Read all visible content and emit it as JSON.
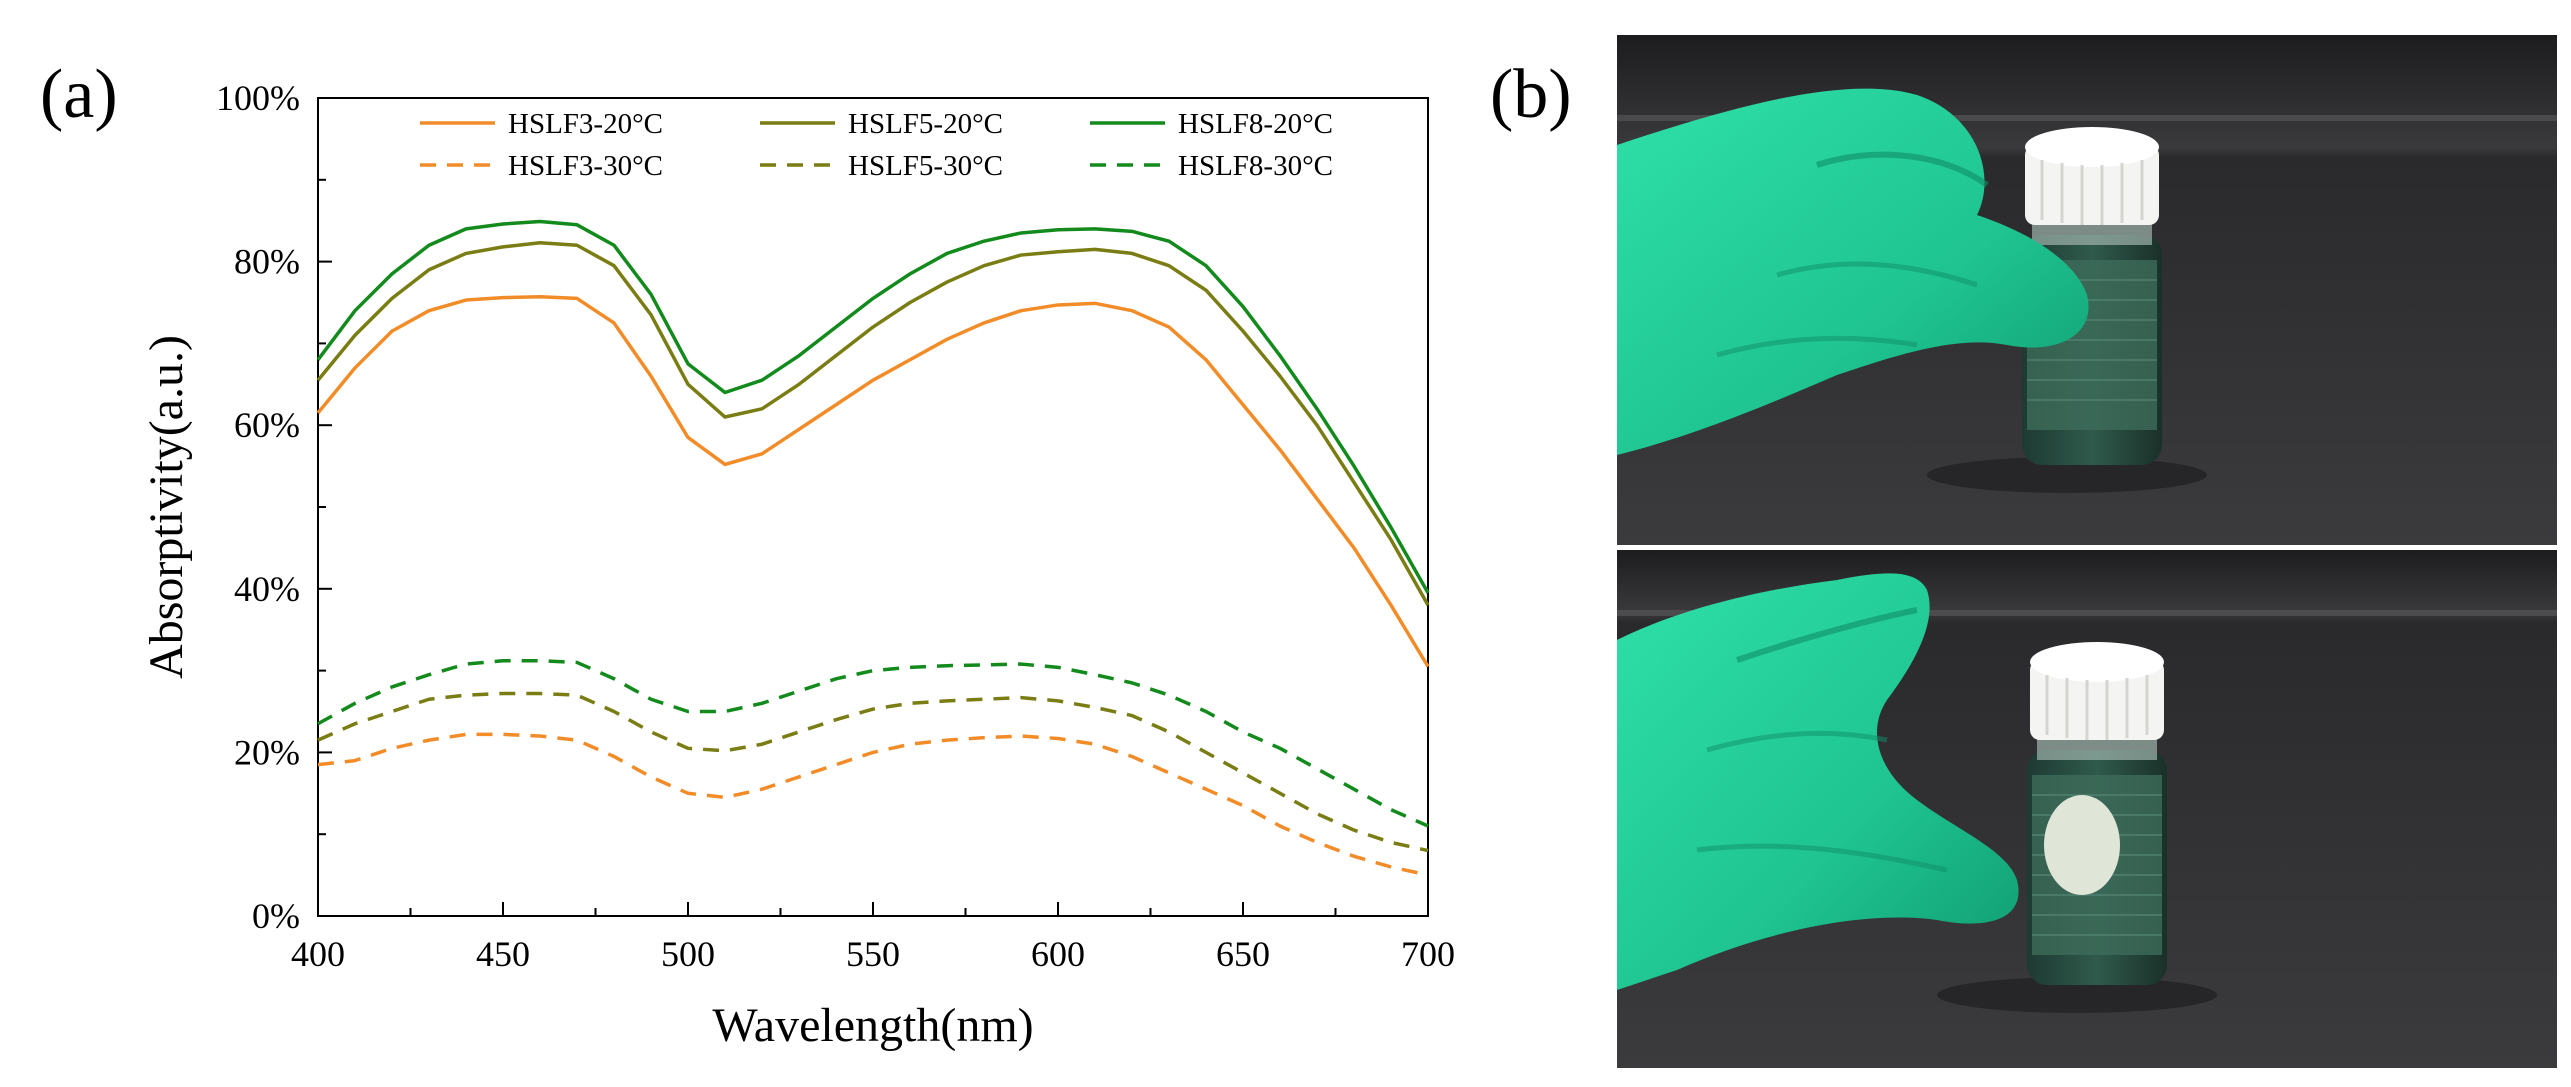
{
  "panels": {
    "a": "(a)",
    "b": "(b)"
  },
  "chart_data": {
    "type": "line",
    "title": "",
    "xlabel": "Wavelength(nm)",
    "ylabel": "Absorptivity(a.u.)",
    "xlim": [
      400,
      700
    ],
    "ylim": [
      0,
      100
    ],
    "xticks": [
      400,
      450,
      500,
      550,
      600,
      650,
      700
    ],
    "yticks": [
      0,
      20,
      40,
      60,
      80,
      100
    ],
    "ytick_labels": [
      "0%",
      "20%",
      "40%",
      "60%",
      "80%",
      "100%"
    ],
    "grid": false,
    "legend_position": "top",
    "x": [
      400,
      410,
      420,
      430,
      440,
      450,
      460,
      470,
      480,
      490,
      500,
      510,
      520,
      530,
      540,
      550,
      560,
      570,
      580,
      590,
      600,
      610,
      620,
      630,
      640,
      650,
      660,
      670,
      680,
      690,
      700
    ],
    "series": [
      {
        "name": "HSLF3-20°C",
        "color": "#F28C28",
        "dash": "solid",
        "values": [
          61.5,
          67,
          71.5,
          74,
          75.3,
          75.6,
          75.7,
          75.5,
          72.5,
          66,
          58.5,
          55.2,
          56.5,
          59.5,
          62.5,
          65.5,
          68,
          70.5,
          72.5,
          74,
          74.7,
          74.9,
          74,
          72,
          68,
          62.5,
          57,
          51,
          45,
          38,
          30.5
        ]
      },
      {
        "name": "HSLF5-20°C",
        "color": "#7A7D13",
        "dash": "solid",
        "values": [
          65.5,
          71,
          75.5,
          79,
          81,
          81.8,
          82.3,
          82,
          79.5,
          73.5,
          65,
          61,
          62,
          65,
          68.5,
          72,
          75,
          77.5,
          79.5,
          80.8,
          81.2,
          81.5,
          81,
          79.5,
          76.5,
          71.5,
          66,
          60,
          53,
          46,
          38
        ]
      },
      {
        "name": "HSLF8-20°C",
        "color": "#138A1C",
        "dash": "solid",
        "values": [
          68,
          74,
          78.5,
          82,
          84,
          84.6,
          84.9,
          84.5,
          82,
          76,
          67.5,
          64,
          65.5,
          68.5,
          72,
          75.5,
          78.5,
          81,
          82.5,
          83.5,
          83.9,
          84,
          83.7,
          82.5,
          79.5,
          74.5,
          68.5,
          62,
          55,
          47.5,
          39.5
        ]
      },
      {
        "name": "HSLF3-30°C",
        "color": "#F28C28",
        "dash": "dashed",
        "values": [
          18.5,
          19,
          20.5,
          21.5,
          22.2,
          22.2,
          22,
          21.5,
          19.5,
          17,
          15,
          14.5,
          15.5,
          17,
          18.5,
          20,
          21,
          21.5,
          21.8,
          22,
          21.7,
          21,
          19.5,
          17.5,
          15.5,
          13.5,
          11,
          9,
          7.3,
          6,
          5
        ]
      },
      {
        "name": "HSLF5-30°C",
        "color": "#7A7D13",
        "dash": "dashed",
        "values": [
          21.5,
          23.5,
          25,
          26.5,
          27,
          27.2,
          27.2,
          27,
          25,
          22.5,
          20.5,
          20.2,
          21,
          22.5,
          24,
          25.3,
          26,
          26.3,
          26.5,
          26.7,
          26.3,
          25.5,
          24.5,
          22.5,
          20,
          17.5,
          15,
          12.5,
          10.5,
          9,
          8
        ]
      },
      {
        "name": "HSLF8-30°C",
        "color": "#138A1C",
        "dash": "dashed",
        "values": [
          23.5,
          26,
          28,
          29.5,
          30.8,
          31.2,
          31.2,
          31,
          29,
          26.5,
          25,
          25,
          26,
          27.5,
          29,
          30,
          30.4,
          30.6,
          30.7,
          30.8,
          30.4,
          29.5,
          28.5,
          27,
          25,
          22.5,
          20.5,
          18,
          15.5,
          13,
          11
        ]
      }
    ]
  }
}
